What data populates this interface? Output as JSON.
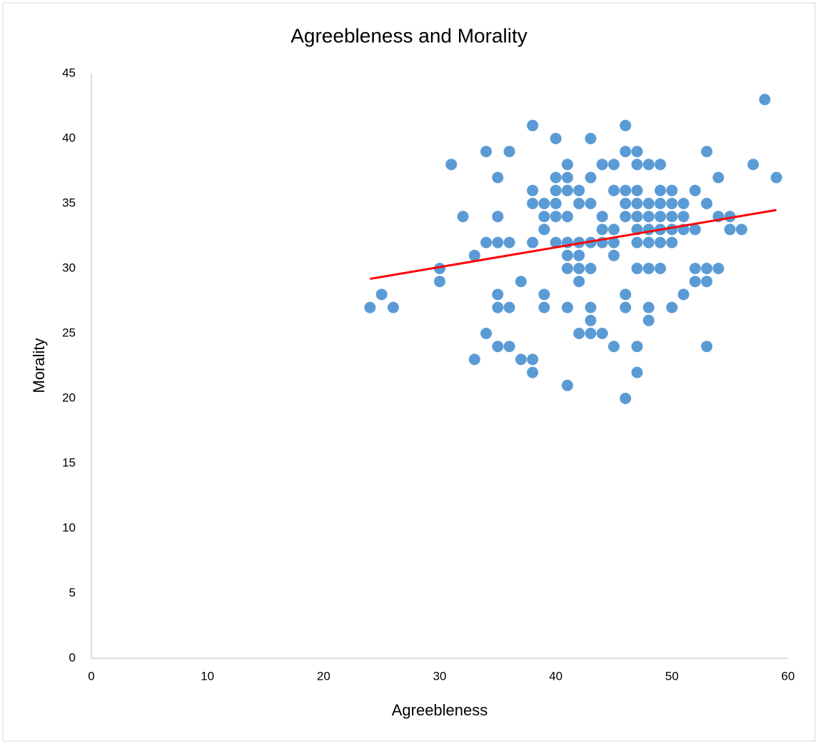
{
  "chart_data": {
    "type": "scatter",
    "title": "Agreebleness and Morality",
    "x_label": "Agreebleness",
    "y_label": "Morality",
    "color": "#5b9bd5",
    "x": [
      24,
      25,
      26,
      30,
      30,
      31,
      32,
      33,
      33,
      34,
      34,
      34,
      35,
      35,
      35,
      35,
      35,
      35,
      36,
      36,
      36,
      36,
      37,
      37,
      38,
      38,
      38,
      38,
      38,
      38,
      39,
      39,
      39,
      39,
      39,
      40,
      40,
      40,
      40,
      40,
      40,
      41,
      41,
      41,
      41,
      41,
      41,
      41,
      41,
      41,
      42,
      42,
      42,
      42,
      42,
      42,
      42,
      43,
      43,
      43,
      43,
      43,
      43,
      43,
      43,
      44,
      44,
      44,
      44,
      44,
      45,
      45,
      45,
      45,
      45,
      45,
      46,
      46,
      46,
      46,
      46,
      46,
      46,
      46,
      47,
      47,
      47,
      47,
      47,
      47,
      47,
      47,
      47,
      47,
      48,
      48,
      48,
      48,
      48,
      48,
      48,
      48,
      49,
      49,
      49,
      49,
      49,
      49,
      49,
      50,
      50,
      50,
      50,
      50,
      50,
      51,
      51,
      51,
      51,
      52,
      52,
      52,
      52,
      53,
      53,
      53,
      53,
      53,
      54,
      54,
      54,
      55,
      55,
      56,
      57,
      58,
      59
    ],
    "values": [
      27,
      28,
      27,
      30,
      29,
      38,
      34,
      31,
      23,
      39,
      32,
      25,
      37,
      34,
      32,
      28,
      27,
      24,
      39,
      32,
      27,
      24,
      29,
      23,
      41,
      36,
      35,
      32,
      23,
      22,
      35,
      34,
      33,
      28,
      27,
      40,
      37,
      36,
      35,
      34,
      32,
      38,
      37,
      36,
      34,
      32,
      31,
      30,
      27,
      21,
      36,
      35,
      32,
      31,
      30,
      29,
      25,
      40,
      37,
      35,
      32,
      30,
      27,
      26,
      25,
      38,
      34,
      33,
      32,
      25,
      38,
      36,
      33,
      32,
      31,
      24,
      41,
      39,
      36,
      35,
      34,
      28,
      27,
      20,
      39,
      38,
      36,
      35,
      34,
      33,
      32,
      30,
      24,
      22,
      38,
      35,
      34,
      33,
      32,
      30,
      27,
      26,
      38,
      36,
      35,
      34,
      33,
      32,
      30,
      36,
      35,
      34,
      33,
      32,
      27,
      35,
      34,
      33,
      28,
      36,
      33,
      30,
      29,
      39,
      35,
      30,
      29,
      24,
      37,
      34,
      30,
      34,
      33,
      33,
      38,
      43,
      37
    ],
    "trendline": {
      "x": [
        24,
        59
      ],
      "y": [
        29.2,
        34.5
      ],
      "color": "#ff0000"
    },
    "xlim": [
      0,
      60
    ],
    "xticks": [
      0,
      10,
      20,
      30,
      40,
      50,
      60
    ],
    "ylim": [
      0,
      45
    ],
    "yticks": [
      0,
      5,
      10,
      15,
      20,
      25,
      30,
      35,
      40,
      45
    ]
  }
}
